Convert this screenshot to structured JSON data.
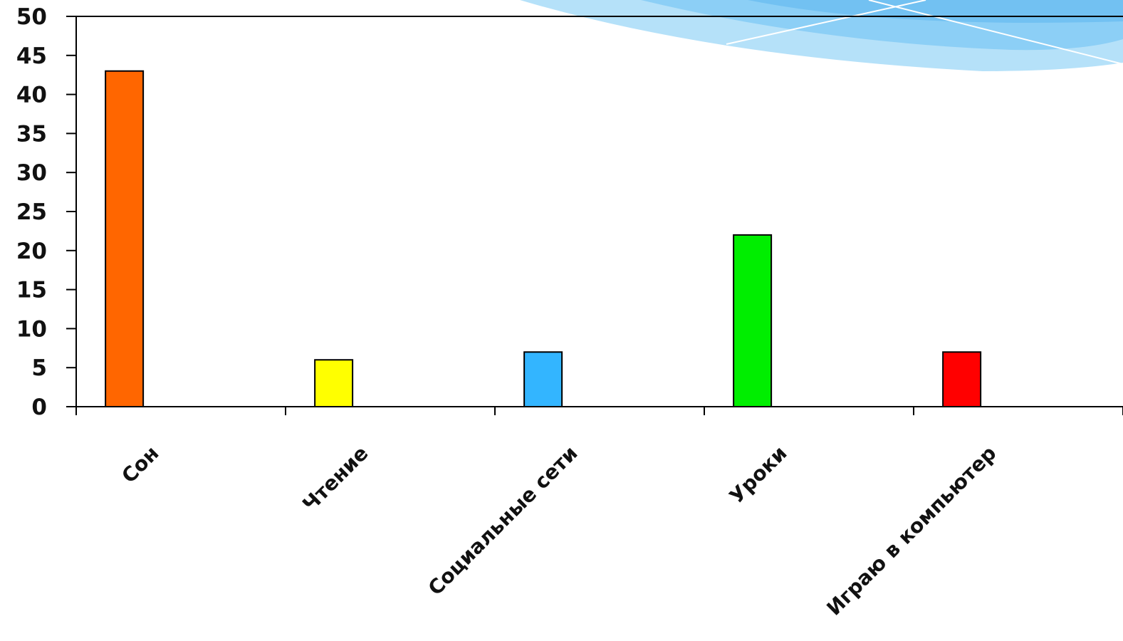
{
  "chart_data": {
    "type": "bar",
    "categories": [
      "Сон",
      "Чтение",
      "Социальные сети",
      "Уроки",
      "Играю в компьютер"
    ],
    "values": [
      43,
      6,
      7,
      22,
      7
    ],
    "colors": [
      "#ff6600",
      "#ffff00",
      "#33b5ff",
      "#00ee00",
      "#ff0000"
    ],
    "ylim": [
      0,
      50
    ],
    "yticks": [
      0,
      5,
      10,
      15,
      20,
      25,
      30,
      35,
      40,
      45,
      50
    ],
    "grid": false,
    "title": "",
    "xlabel": "",
    "ylabel": ""
  }
}
